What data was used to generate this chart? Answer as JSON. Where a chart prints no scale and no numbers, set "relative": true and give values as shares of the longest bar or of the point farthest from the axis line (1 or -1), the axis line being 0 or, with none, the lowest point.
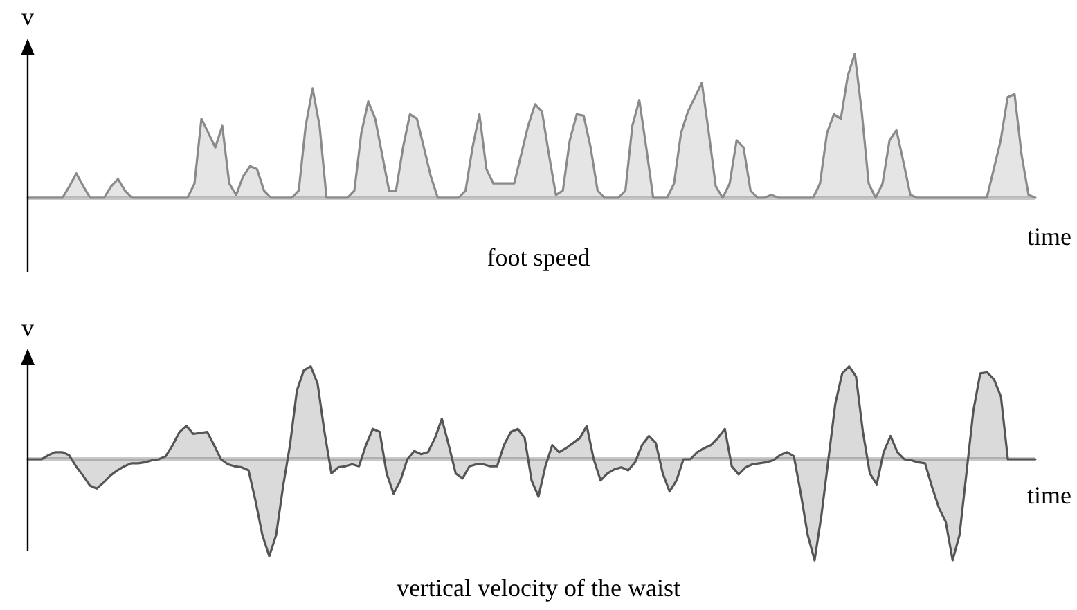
{
  "chart_data": [
    {
      "type": "area",
      "title": "foot speed",
      "xlabel": "time",
      "ylabel": "v",
      "relative": true,
      "categories": [
        null,
        null,
        null,
        null,
        null,
        null,
        null,
        null,
        null,
        null,
        null,
        null,
        null,
        null,
        null,
        null,
        null,
        null,
        null,
        null,
        null,
        null,
        null,
        null,
        null,
        null,
        null,
        null,
        null,
        null,
        null,
        null,
        null,
        null,
        null,
        null,
        null,
        null,
        null,
        null,
        null,
        null,
        null,
        null,
        null,
        null,
        null,
        null,
        null,
        null,
        null,
        null,
        null,
        null,
        null,
        null,
        null,
        null,
        null,
        null,
        null,
        null,
        null,
        null,
        null,
        null,
        null,
        null,
        null,
        null,
        null,
        null,
        null,
        null,
        null,
        null,
        null,
        null,
        null,
        null,
        null,
        null,
        null,
        null,
        null,
        null,
        null,
        null,
        null,
        null,
        null,
        null,
        null,
        null,
        null,
        null,
        null,
        null,
        null,
        null,
        null,
        null,
        null,
        null,
        null,
        null,
        null,
        null,
        null,
        null,
        null,
        null,
        null,
        null,
        null,
        null,
        null,
        null,
        null,
        null,
        null,
        null,
        null,
        null,
        null,
        null,
        null,
        null,
        null,
        null,
        null,
        null,
        null,
        null,
        null,
        null,
        null,
        null,
        null,
        null,
        null,
        null,
        null,
        null,
        null,
        null
      ],
      "series": [
        {
          "color": "#8a8a8a",
          "values": [
            0,
            0,
            0,
            0,
            0,
            0,
            0.08,
            0.17,
            0.08,
            0,
            0,
            0,
            0.08,
            0.13,
            0.05,
            0,
            0,
            0,
            0,
            0,
            0,
            0,
            0,
            0,
            0.1,
            0.55,
            0.45,
            0.35,
            0.5,
            0.1,
            0.02,
            0.15,
            0.22,
            0.2,
            0.05,
            0,
            0,
            0,
            0,
            0.05,
            0.5,
            0.76,
            0.5,
            0,
            0,
            0,
            0,
            0.05,
            0.45,
            0.67,
            0.55,
            0.3,
            0.05,
            0.05,
            0.35,
            0.58,
            0.55,
            0.35,
            0.15,
            0,
            0,
            0,
            0,
            0.05,
            0.35,
            0.58,
            0.2,
            0.1,
            0.1,
            0.1,
            0.1,
            0.3,
            0.5,
            0.65,
            0.6,
            0.3,
            0.02,
            0.05,
            0.4,
            0.58,
            0.57,
            0.35,
            0.05,
            0,
            0,
            0,
            0.05,
            0.5,
            0.68,
            0.35,
            0,
            0,
            0,
            0.1,
            0.45,
            0.6,
            0.7,
            0.8,
            0.45,
            0.08,
            0,
            0.1,
            0.4,
            0.35,
            0.05,
            0,
            0,
            0.02,
            0,
            0,
            0,
            0,
            0,
            0,
            0.1,
            0.45,
            0.58,
            0.55,
            0.85,
            1,
            0.6,
            0.1,
            0,
            0.1,
            0.4,
            0.47,
            0.25,
            0.02,
            0,
            0,
            0,
            0,
            0,
            0,
            0,
            0,
            0,
            0,
            0,
            0.2,
            0.4,
            0.7,
            0.72,
            0.3,
            0.02,
            0
          ]
        }
      ]
    },
    {
      "type": "area",
      "title": "vertical velocity of the waist",
      "xlabel": "time",
      "ylabel": "v",
      "relative": true,
      "categories": [
        null,
        null,
        null,
        null,
        null,
        null,
        null,
        null,
        null,
        null,
        null,
        null,
        null,
        null,
        null,
        null,
        null,
        null,
        null,
        null,
        null,
        null,
        null,
        null,
        null,
        null,
        null,
        null,
        null,
        null,
        null,
        null,
        null,
        null,
        null,
        null,
        null,
        null,
        null,
        null,
        null,
        null,
        null,
        null,
        null,
        null,
        null,
        null,
        null,
        null,
        null,
        null,
        null,
        null,
        null,
        null,
        null,
        null,
        null,
        null,
        null,
        null,
        null,
        null,
        null,
        null,
        null,
        null,
        null,
        null,
        null,
        null,
        null,
        null,
        null,
        null,
        null,
        null,
        null,
        null,
        null,
        null,
        null,
        null,
        null,
        null,
        null,
        null,
        null,
        null,
        null,
        null,
        null,
        null,
        null,
        null,
        null,
        null,
        null,
        null,
        null,
        null,
        null,
        null,
        null,
        null,
        null,
        null,
        null,
        null,
        null,
        null,
        null,
        null,
        null,
        null,
        null,
        null,
        null,
        null,
        null,
        null,
        null,
        null,
        null,
        null,
        null,
        null,
        null,
        null,
        null,
        null,
        null,
        null,
        null,
        null,
        null,
        null,
        null,
        null,
        null,
        null,
        null,
        null,
        null,
        null,
        null
      ],
      "series": [
        {
          "color": "#555555",
          "values": [
            0,
            0,
            0,
            0.04,
            0.07,
            0.07,
            0.04,
            -0.07,
            -0.16,
            -0.26,
            -0.29,
            -0.23,
            -0.16,
            -0.11,
            -0.07,
            -0.04,
            -0.04,
            -0.03,
            -0.01,
            0,
            0.03,
            0.14,
            0.27,
            0.33,
            0.25,
            0.26,
            0.27,
            0.14,
            0,
            -0.05,
            -0.07,
            -0.08,
            -0.11,
            -0.41,
            -0.75,
            -0.96,
            -0.75,
            -0.27,
            0.14,
            0.68,
            0.88,
            0.92,
            0.75,
            0.27,
            -0.14,
            -0.08,
            -0.07,
            -0.05,
            -0.07,
            0.14,
            0.3,
            0.27,
            -0.14,
            -0.34,
            -0.21,
            0,
            0.08,
            0.05,
            0.07,
            0.21,
            0.4,
            0.14,
            -0.14,
            -0.19,
            -0.07,
            -0.05,
            -0.05,
            -0.07,
            -0.07,
            0.14,
            0.27,
            0.3,
            0.21,
            -0.21,
            -0.37,
            -0.07,
            0.14,
            0.07,
            0.11,
            0.16,
            0.21,
            0.33,
            0,
            -0.21,
            -0.14,
            -0.1,
            -0.08,
            -0.11,
            -0.03,
            0.14,
            0.23,
            0.16,
            -0.14,
            -0.32,
            -0.21,
            0,
            0,
            0.07,
            0.11,
            0.14,
            0.21,
            0.3,
            -0.07,
            -0.15,
            -0.08,
            -0.05,
            -0.04,
            -0.03,
            -0.01,
            0.04,
            0.07,
            0.03,
            -0.34,
            -0.75,
            -1,
            -0.55,
            0,
            0.55,
            0.85,
            0.92,
            0.82,
            0.27,
            -0.14,
            -0.25,
            0.07,
            0.23,
            0.07,
            0,
            -0.01,
            -0.03,
            -0.04,
            -0.27,
            -0.48,
            -0.62,
            -1,
            -0.75,
            -0.14,
            0.48,
            0.85,
            0.86,
            0.79,
            0.62,
            0,
            0,
            0,
            0,
            0
          ]
        }
      ]
    }
  ]
}
